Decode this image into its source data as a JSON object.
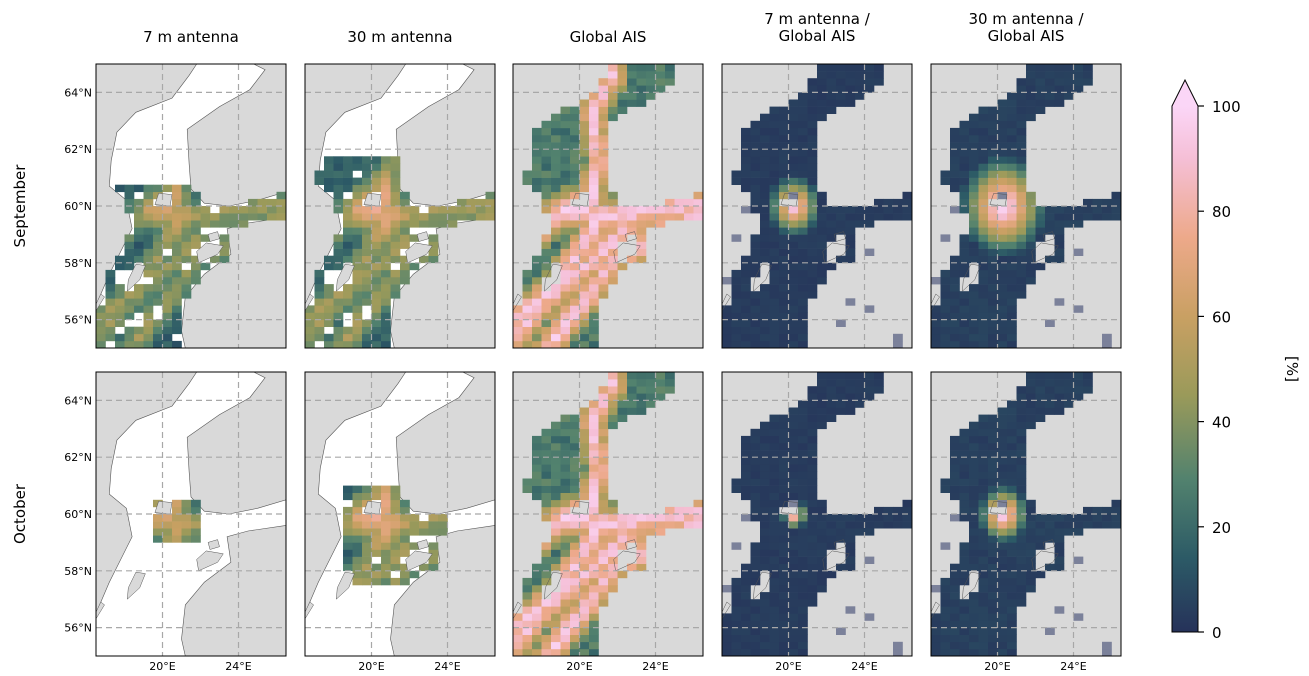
{
  "chart_data": {
    "type": "heatmap",
    "layout": "2 rows x 5 columns of map panels",
    "columns": [
      "7 m antenna",
      "30 m antenna",
      "Global AIS",
      "7 m antenna /\nGlobal AIS",
      "30 m antenna /\nGlobal AIS"
    ],
    "rows": [
      "September",
      "October"
    ],
    "lat_range": [
      55,
      65
    ],
    "lon_range": [
      16.5,
      26.5
    ],
    "x_ticks": [
      "20°E",
      "24°E"
    ],
    "y_ticks": [
      "56°N",
      "58°N",
      "60°N",
      "62°N",
      "64°N"
    ],
    "grid": true,
    "colorbar": {
      "label": "[%]",
      "range": [
        0,
        100
      ],
      "ticks": [
        "0",
        "20",
        "40",
        "60",
        "80",
        "100"
      ],
      "extend": "max",
      "colormap": [
        "#26325a",
        "#2c5a66",
        "#52826e",
        "#9a9a5a",
        "#c9a063",
        "#eda98a",
        "#f5bfd6",
        "#fbd6f7"
      ]
    },
    "colors": {
      "land": "#d9d9d9",
      "no_data_sea": "#ffffff",
      "low_value": "#26325a",
      "grid_line": "#a8a8a8"
    },
    "panels": [
      {
        "row": "September",
        "column": "7 m antenna",
        "coverage": "central Baltic and Gulf of Finland mouth; no data in Bothnian Sea/Bay"
      },
      {
        "row": "September",
        "column": "30 m antenna",
        "coverage": "Bothnian Sea south, Baltic proper and Gulf of Finland"
      },
      {
        "row": "September",
        "column": "Global AIS",
        "coverage": "entire Baltic with high-density shipping lanes"
      },
      {
        "row": "September",
        "column": "7 m antenna /\nGlobal AIS",
        "coverage": "entire sea; peak near the Åland / Archipelago Sea"
      },
      {
        "row": "September",
        "column": "30 m antenna /\nGlobal AIS",
        "coverage": "entire sea; broad high-ratio area around Åland"
      },
      {
        "row": "October",
        "column": "7 m antenna",
        "coverage": "small area around Åland only"
      },
      {
        "row": "October",
        "column": "30 m antenna",
        "coverage": "Åland area, southern Bothnian Sea and western Gulf of Finland"
      },
      {
        "row": "October",
        "column": "Global AIS",
        "coverage": "entire Baltic with high-density shipping lanes"
      },
      {
        "row": "October",
        "column": "7 m antenna /\nGlobal AIS",
        "coverage": "entire sea; small peak near Åland"
      },
      {
        "row": "October",
        "column": "30 m antenna /\nGlobal AIS",
        "coverage": "entire sea; peak around Åland"
      }
    ]
  }
}
